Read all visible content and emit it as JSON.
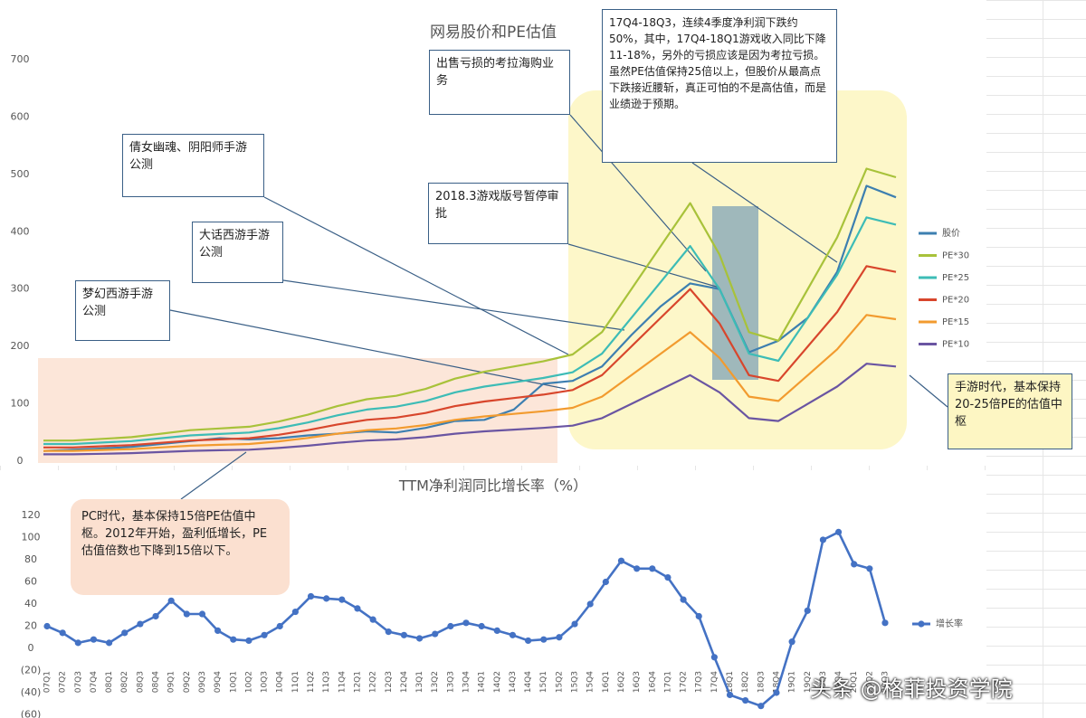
{
  "chart_data": [
    {
      "type": "line",
      "title": "网易股价和PE估值",
      "categories": [
        null,
        null,
        null,
        null,
        null,
        null,
        null,
        null,
        null,
        null,
        null,
        null,
        null,
        null,
        null,
        null,
        null,
        null,
        null,
        null,
        null,
        null,
        null,
        null,
        null,
        null,
        null,
        null,
        null,
        null
      ],
      "series": [
        {
          "name": "股价",
          "color": "#3d7fb0",
          "values": [
            18,
            20,
            22,
            25,
            30,
            35,
            40,
            38,
            40,
            45,
            48,
            52,
            50,
            58,
            70,
            72,
            90,
            135,
            140,
            165,
            220,
            270,
            310,
            300,
            190,
            210,
            250,
            330,
            480,
            460
          ]
        },
        {
          "name": "PE*30",
          "color": "#a8c23a",
          "values": [
            36,
            36,
            39,
            42,
            48,
            54,
            57,
            60,
            69,
            81,
            96,
            108,
            114,
            126,
            144,
            156,
            165,
            174,
            186,
            225,
            300,
            375,
            450,
            360,
            225,
            210,
            300,
            390,
            510,
            495
          ]
        },
        {
          "name": "PE*25",
          "color": "#3dbcb6",
          "values": [
            30,
            30,
            32.5,
            35,
            40,
            45,
            47.5,
            50,
            57.5,
            67.5,
            80,
            90,
            95,
            105,
            120,
            130,
            137.5,
            145,
            155,
            187.5,
            250,
            312.5,
            375,
            300,
            187.5,
            175,
            250,
            325,
            425,
            412.5
          ]
        },
        {
          "name": "PE*20",
          "color": "#d8462c",
          "values": [
            24,
            24,
            26,
            28,
            32,
            36,
            38,
            40,
            46,
            54,
            64,
            72,
            76,
            84,
            96,
            104,
            110,
            116,
            124,
            150,
            200,
            250,
            300,
            240,
            150,
            140,
            200,
            260,
            340,
            330
          ]
        },
        {
          "name": "PE*15",
          "color": "#f29b2f",
          "values": [
            18,
            18,
            19.5,
            21,
            24,
            27,
            28.5,
            30,
            34.5,
            40.5,
            48,
            54,
            57,
            63,
            72,
            78,
            82.5,
            87,
            93,
            112.5,
            150,
            187.5,
            225,
            180,
            112.5,
            105,
            150,
            195,
            255,
            247.5
          ]
        },
        {
          "name": "PE*10",
          "color": "#6a55a2",
          "values": [
            12,
            12,
            13,
            14,
            16,
            18,
            19,
            20,
            23,
            27,
            32,
            36,
            38,
            42,
            48,
            52,
            55,
            58,
            62,
            75,
            100,
            125,
            150,
            120,
            75,
            70,
            100,
            130,
            170,
            165
          ]
        }
      ],
      "ylim": [
        0,
        700
      ],
      "yticks": [
        0,
        100,
        200,
        300,
        400,
        500,
        600,
        700
      ],
      "grid": false,
      "legend": "right",
      "annotations": [
        "出售亏损的考拉海购业务",
        "17Q4-18Q3，连续4季度净利润下跌约50%，其中，17Q4-18Q1游戏收入同比下降11-18%，另外的亏损应该是因为考拉亏损。虽然PE估值保持25倍以上，但股价从最高点下跌接近腰斩，真正可怕的不是高估值，而是业绩逊于预期。",
        "倩女幽魂、阴阳师手游公测",
        "2018.3游戏版号暂停审批",
        "大话西游手游公测",
        "梦幻西游手游公测",
        "手游时代，基本保持20-25倍PE的估值中枢",
        "PC时代，基本保持15倍PE估值中枢。2012年开始，盈利低增长，PE估值倍数也下降到15倍以下。"
      ]
    },
    {
      "type": "line",
      "title": "TTM净利润同比增长率（%）",
      "categories": [
        "07Q1",
        "07Q2",
        "07Q3",
        "07Q4",
        "08Q1",
        "08Q2",
        "08Q3",
        "08Q4",
        "09Q1",
        "09Q2",
        "09Q3",
        "09Q4",
        "10Q1",
        "10Q2",
        "10Q3",
        "10Q4",
        "11Q1",
        "11Q2",
        "11Q3",
        "11Q4",
        "12Q1",
        "12Q2",
        "12Q3",
        "12Q4",
        "13Q1",
        "13Q2",
        "13Q3",
        "13Q4",
        "14Q1",
        "14Q2",
        "14Q3",
        "14Q4",
        "15Q1",
        "15Q2",
        "15Q3",
        "15Q4",
        "16Q1",
        "16Q2",
        "16Q3",
        "16Q4",
        "17Q1",
        "17Q2",
        "17Q3",
        "17Q4",
        "18Q1",
        "18Q2",
        "18Q3",
        "18Q4",
        "19Q1",
        "19Q2",
        "19Q3",
        "19Q4",
        "20Q1",
        "20Q2",
        "20Q3"
      ],
      "series": [
        {
          "name": "增长率",
          "color": "#4472c4",
          "values": [
            20,
            14,
            5,
            8,
            5,
            14,
            22,
            29,
            43,
            31,
            31,
            16,
            8,
            7,
            12,
            20,
            33,
            47,
            45,
            44,
            36,
            26,
            15,
            12,
            9,
            13,
            20,
            23,
            20,
            16,
            12,
            7,
            8,
            10,
            22,
            40,
            60,
            79,
            72,
            72,
            64,
            44,
            29,
            -8,
            -42,
            -47,
            -52,
            -40,
            6,
            34,
            98,
            105,
            76,
            72,
            23
          ]
        }
      ],
      "ylim": [
        -60,
        120
      ],
      "yticks": [
        120,
        100,
        80,
        60,
        40,
        20,
        0,
        {
          "value": -20,
          "label": "(20)"
        },
        {
          "value": -40,
          "label": "(40)"
        },
        {
          "value": -60,
          "label": "(60)"
        }
      ],
      "negative_label_color": "#c00000",
      "grid": false,
      "legend": "right"
    }
  ],
  "watermark": "头条 @格菲投资学院"
}
